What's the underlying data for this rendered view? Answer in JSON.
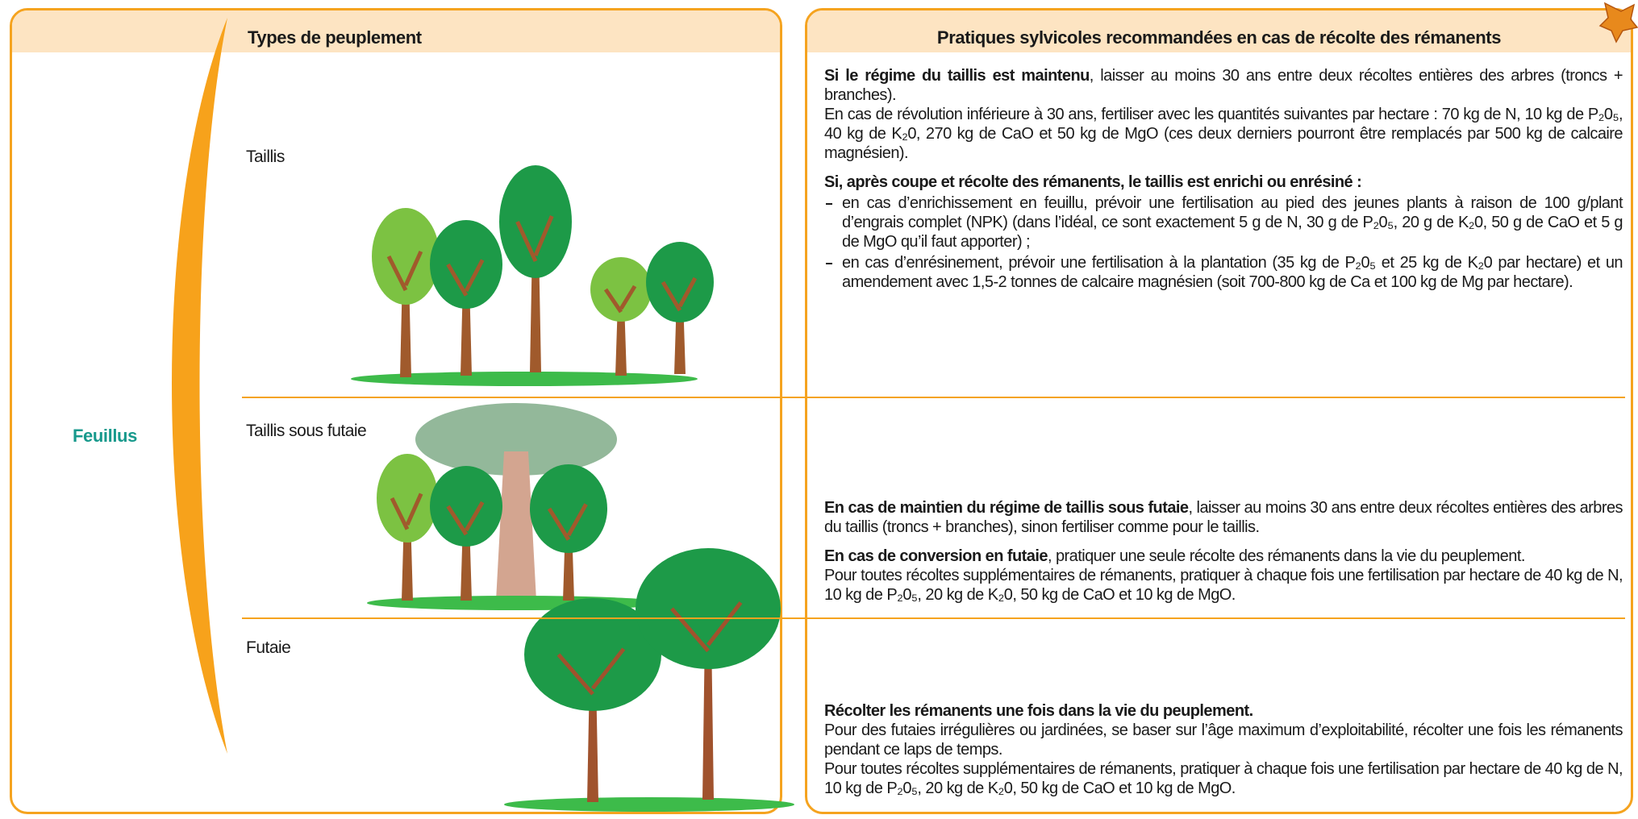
{
  "header": {
    "types": "Types de peuplement",
    "practices": "Pratiques sylvicoles recommandées en cas de récolte des rémanents"
  },
  "group": "Feuillus",
  "rows": [
    {
      "type": "Taillis",
      "practices": [
        {
          "bold": "Si le régime du taillis est maintenu",
          "text": ", laisser au moins 30 ans entre deux récoltes entières des arbres (troncs + branches).",
          "more": [
            "En cas de révolution inférieure à 30 ans, fertiliser avec les quantités suivantes par hectare : 70 kg de N, 10 kg de P₂0₅, 40 kg de K₂0, 270 kg de CaO et 50 kg de MgO (ces deux derniers pourront être remplacés par 500 kg de calcaire magnésien)."
          ]
        },
        {
          "bold": "Si, après coupe et récolte des rémanents, le taillis est enrichi ou enrésiné :",
          "items": [
            "en cas d’enrichissement en feuillu, prévoir une fertilisation au pied des jeunes plants à raison de 100 g/plant d’engrais complet (NPK) (dans l’idéal, ce sont exactement 5 g de N, 30 g de P₂0₅, 20 g de K₂0, 50 g de CaO et 5 g de MgO qu’il faut apporter) ;",
            "en cas d’enrésinement, prévoir une fertilisation à la plantation (35 kg de P₂0₅ et 25 kg de K₂0 par hectare) et un amendement avec 1,5-2 tonnes de calcaire magnésien (soit 700-800 kg de Ca et 100 kg de Mg par hectare)."
          ]
        }
      ]
    },
    {
      "type": "Taillis sous futaie",
      "practices": [
        {
          "bold": "En cas de maintien du régime de taillis sous futaie",
          "text": ", laisser au moins 30 ans entre deux récoltes entières des arbres du taillis (troncs + branches), sinon fertiliser comme pour le taillis."
        },
        {
          "bold": "En cas de conversion en futaie",
          "text": ", pratiquer une seule récolte des rémanents dans la vie du peuplement.",
          "more": [
            "Pour toutes récoltes supplémentaires de rémanents, pratiquer à chaque fois une fertilisation par hectare de 40 kg de N, 10 kg de P₂0₅, 20 kg de K₂0, 50 kg de CaO et 10 kg de MgO."
          ]
        }
      ]
    },
    {
      "type": "Futaie",
      "practices": [
        {
          "bold": "Récolter les rémanents une fois dans la vie du peuplement.",
          "more": [
            "Pour des futaies irrégulières ou jardinées, se baser sur l’âge maximum d’exploitabilité, récolter une fois les rémanents pendant ce laps de temps.",
            "Pour toutes récoltes supplémentaires de rémanents, pratiquer à chaque fois une fertilisation par hectare de 40 kg de N, 10 kg de P₂0₅, 20 kg de K₂0, 50 kg de CaO et 10 kg de MgO."
          ]
        }
      ]
    }
  ]
}
